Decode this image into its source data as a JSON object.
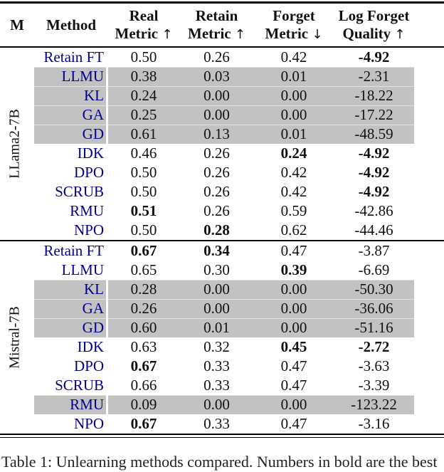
{
  "colors": {
    "method_name": "#00008B",
    "shaded_row": "#c2c2c2",
    "rule": "#000000"
  },
  "table": {
    "columns": [
      {
        "label": "M"
      },
      {
        "label": "Method"
      },
      {
        "line1": "Real",
        "line2": "Metric",
        "arrow": "↑"
      },
      {
        "line1": "Retain",
        "line2": "Metric",
        "arrow": "↑"
      },
      {
        "line1": "Forget",
        "line2": "Metric",
        "arrow": "↓"
      },
      {
        "line1": "Log Forget",
        "line2": "Quality",
        "arrow": "↑"
      }
    ],
    "groups": [
      {
        "model": "LLama2-7B",
        "rows": [
          {
            "method": "Retain FT",
            "values": [
              "0.50",
              "0.26",
              "0.42",
              "-4.92"
            ],
            "bold": [
              false,
              false,
              false,
              true
            ],
            "shaded": false
          },
          {
            "method": "LLMU",
            "values": [
              "0.38",
              "0.03",
              "0.01",
              "-2.31"
            ],
            "bold": [
              false,
              false,
              false,
              false
            ],
            "shaded": true
          },
          {
            "method": "KL",
            "values": [
              "0.24",
              "0.00",
              "0.00",
              "-18.22"
            ],
            "bold": [
              false,
              false,
              false,
              false
            ],
            "shaded": true
          },
          {
            "method": "GA",
            "values": [
              "0.25",
              "0.00",
              "0.00",
              "-17.22"
            ],
            "bold": [
              false,
              false,
              false,
              false
            ],
            "shaded": true
          },
          {
            "method": "GD",
            "values": [
              "0.61",
              "0.13",
              "0.01",
              "-48.59"
            ],
            "bold": [
              false,
              false,
              false,
              false
            ],
            "shaded": true
          },
          {
            "method": "IDK",
            "values": [
              "0.46",
              "0.26",
              "0.24",
              "-4.92"
            ],
            "bold": [
              false,
              false,
              true,
              true
            ],
            "shaded": false
          },
          {
            "method": "DPO",
            "values": [
              "0.50",
              "0.26",
              "0.42",
              "-4.92"
            ],
            "bold": [
              false,
              false,
              false,
              true
            ],
            "shaded": false
          },
          {
            "method": "SCRUB",
            "values": [
              "0.50",
              "0.26",
              "0.42",
              "-4.92"
            ],
            "bold": [
              false,
              false,
              false,
              true
            ],
            "shaded": false
          },
          {
            "method": "RMU",
            "values": [
              "0.51",
              "0.26",
              "0.59",
              "-42.86"
            ],
            "bold": [
              true,
              false,
              false,
              false
            ],
            "shaded": false
          },
          {
            "method": "NPO",
            "values": [
              "0.50",
              "0.28",
              "0.62",
              "-44.46"
            ],
            "bold": [
              false,
              true,
              false,
              false
            ],
            "shaded": false
          }
        ]
      },
      {
        "model": "Mistral-7B",
        "rows": [
          {
            "method": "Retain FT",
            "values": [
              "0.67",
              "0.34",
              "0.47",
              "-3.87"
            ],
            "bold": [
              true,
              true,
              false,
              false
            ],
            "shaded": false
          },
          {
            "method": "LLMU",
            "values": [
              "0.65",
              "0.30",
              "0.39",
              "-6.69"
            ],
            "bold": [
              false,
              false,
              true,
              false
            ],
            "shaded": false
          },
          {
            "method": "KL",
            "values": [
              "0.28",
              "0.00",
              "0.00",
              "-50.30"
            ],
            "bold": [
              false,
              false,
              false,
              false
            ],
            "shaded": true
          },
          {
            "method": "GA",
            "values": [
              "0.26",
              "0.00",
              "0.00",
              "-36.06"
            ],
            "bold": [
              false,
              false,
              false,
              false
            ],
            "shaded": true
          },
          {
            "method": "GD",
            "values": [
              "0.60",
              "0.01",
              "0.00",
              "-51.16"
            ],
            "bold": [
              false,
              false,
              false,
              false
            ],
            "shaded": true
          },
          {
            "method": "IDK",
            "values": [
              "0.63",
              "0.32",
              "0.45",
              "-2.72"
            ],
            "bold": [
              false,
              false,
              true,
              true
            ],
            "shaded": false
          },
          {
            "method": "DPO",
            "values": [
              "0.67",
              "0.33",
              "0.47",
              "-3.63"
            ],
            "bold": [
              true,
              false,
              false,
              false
            ],
            "shaded": false
          },
          {
            "method": "SCRUB",
            "values": [
              "0.66",
              "0.33",
              "0.47",
              "-3.39"
            ],
            "bold": [
              false,
              false,
              false,
              false
            ],
            "shaded": false
          },
          {
            "method": "RMU",
            "values": [
              "0.09",
              "0.00",
              "0.00",
              "-123.22"
            ],
            "bold": [
              false,
              false,
              false,
              false
            ],
            "shaded": true
          },
          {
            "method": "NPO",
            "values": [
              "0.67",
              "0.33",
              "0.47",
              "-3.16"
            ],
            "bold": [
              true,
              false,
              false,
              false
            ],
            "shaded": false
          }
        ]
      }
    ]
  },
  "caption": {
    "text_partial": "Table 1: Unlearning methods compared. Numbers in bold are the best"
  }
}
